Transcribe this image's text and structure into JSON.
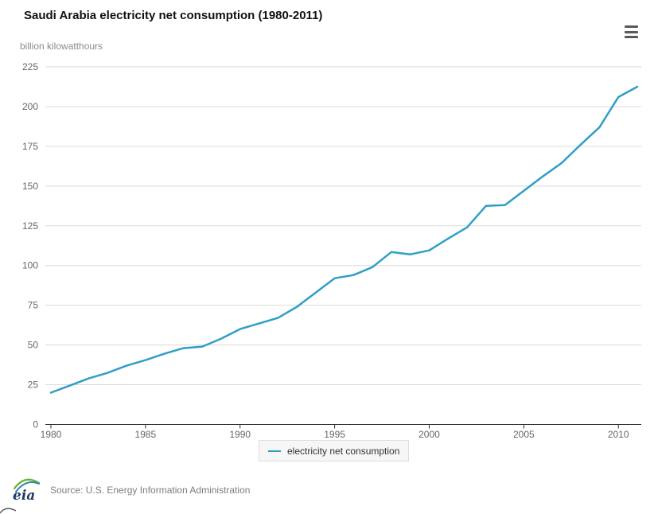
{
  "header": {
    "title": "Saudi Arabia electricity net consumption (1980-2011)"
  },
  "axis": {
    "unit_label": "billion kilowatthours"
  },
  "legend": {
    "label": "electricity net consumption"
  },
  "footer": {
    "logo_text": "eia",
    "source": "Source: U.S. Energy Information Administration"
  },
  "icons": {
    "menu": "hamburger-menu-icon",
    "logo": "eia-swoosh-logo"
  },
  "colors": {
    "line": "#2f9fc6",
    "grid": "#d9d9d9",
    "axis_line": "#333333",
    "axis_text": "#666666",
    "title_text": "#111111",
    "unit_text": "#8c8c8c",
    "legend_bg": "#f6f6f6",
    "legend_border": "#dedede",
    "menu_icon": "#58595b",
    "source_text": "#7d7d7d",
    "logo_navy": "#1c3a63",
    "logo_green": "#68b32e",
    "logo_blue": "#2e86ab"
  },
  "chart_data": {
    "type": "line",
    "title": "Saudi Arabia electricity net consumption (1980-2011)",
    "ylabel": "billion kilowatthours",
    "xlabel": "",
    "series_name": "electricity net consumption",
    "x": [
      1980,
      1981,
      1982,
      1983,
      1984,
      1985,
      1986,
      1987,
      1988,
      1989,
      1990,
      1991,
      1992,
      1993,
      1994,
      1995,
      1996,
      1997,
      1998,
      1999,
      2000,
      2001,
      2002,
      2003,
      2004,
      2005,
      2006,
      2007,
      2008,
      2009,
      2010,
      2011
    ],
    "values": [
      20,
      24.5,
      29,
      32.5,
      37,
      40.5,
      44.5,
      48,
      49,
      54,
      60,
      63.5,
      67,
      74,
      83,
      92,
      94,
      99,
      108.5,
      107,
      109.5,
      117,
      124,
      137.5,
      138,
      147,
      156,
      164.5,
      176,
      187,
      206,
      212.5
    ],
    "xlim": [
      1980,
      2011
    ],
    "ylim": [
      0,
      225
    ],
    "ytick_interval": 25,
    "yticks": [
      0,
      25,
      50,
      75,
      100,
      125,
      150,
      175,
      200,
      225
    ],
    "xticks": [
      1980,
      1985,
      1990,
      1995,
      2000,
      2005,
      2010
    ],
    "grid": true,
    "legend_position": "bottom-center"
  }
}
